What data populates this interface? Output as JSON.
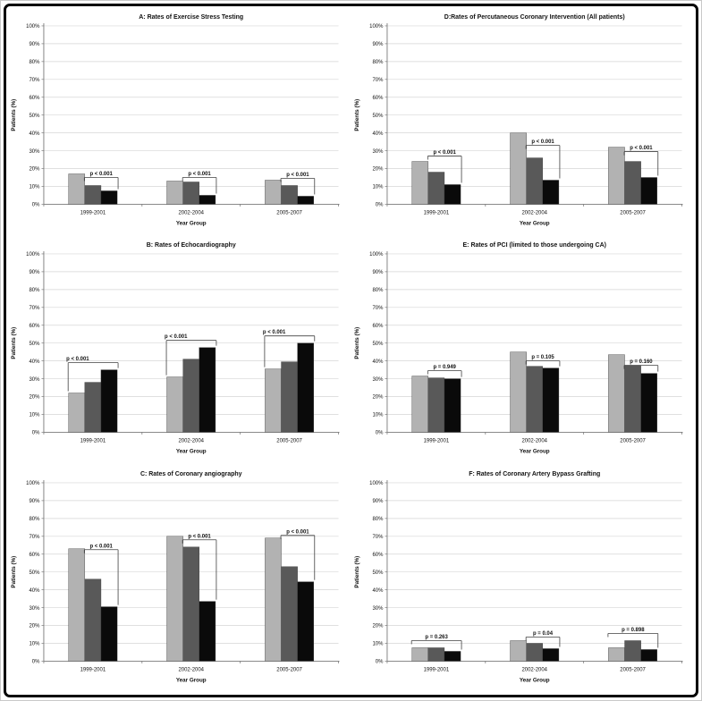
{
  "page": {
    "background": "#ffffff",
    "frame_border_color": "#000000",
    "grid_color": "#d6d6d6",
    "axis_color": "#7a7a7a",
    "bracket_color": "#404040"
  },
  "chart_defaults": {
    "xlabel": "Year Group",
    "ylabel": "Patients (%)",
    "categories": [
      "1999-2001",
      "2002-2004",
      "2005-2007"
    ],
    "ylim": [
      0,
      100
    ],
    "ytick_step": 10,
    "ytick_suffix": "%",
    "grid": true,
    "legend": "none",
    "series_colors": [
      "#b2b2b2",
      "#595959",
      "#0a0a0a"
    ]
  },
  "chart_data": [
    {
      "id": "A",
      "type": "bar",
      "title": "A: Rates of Exercise Stress Testing",
      "xlabel": "Year Group",
      "ylabel": "Patients (%)",
      "categories": [
        "1999-2001",
        "2002-2004",
        "2005-2007"
      ],
      "ylim": [
        0,
        100
      ],
      "series": [
        {
          "name": "light-gray-bar",
          "color": "#b2b2b2",
          "values": [
            17,
            13,
            13.5
          ]
        },
        {
          "name": "dark-gray-bar",
          "color": "#595959",
          "values": [
            10.5,
            12.5,
            10.5
          ]
        },
        {
          "name": "black-bar",
          "color": "#0a0a0a",
          "values": [
            7.5,
            5,
            4.5
          ]
        }
      ],
      "brackets": [
        {
          "label": "p < 0.001",
          "from": 1,
          "to": 2,
          "line_y": 15,
          "left_tick": "short",
          "label_align": "center"
        },
        {
          "label": "p < 0.001",
          "from": 1,
          "to": 2,
          "line_y": 15,
          "left_tick": "short",
          "label_align": "center"
        },
        {
          "label": "p < 0.001",
          "from": 1,
          "to": 2,
          "line_y": 14.5,
          "left_tick": "short",
          "label_align": "center"
        }
      ]
    },
    {
      "id": "D",
      "type": "bar",
      "title": "D:Rates of  Percutaneous Coronary Intervention (All patients)",
      "xlabel": "Year Group",
      "ylabel": "Patients (%)",
      "categories": [
        "1999-2001",
        "2002-2004",
        "2005-2007"
      ],
      "ylim": [
        0,
        100
      ],
      "series": [
        {
          "name": "light-gray-bar",
          "color": "#b2b2b2",
          "values": [
            24,
            40,
            32
          ]
        },
        {
          "name": "dark-gray-bar",
          "color": "#595959",
          "values": [
            18,
            26,
            24
          ]
        },
        {
          "name": "black-bar",
          "color": "#0a0a0a",
          "values": [
            11,
            13.5,
            15
          ]
        }
      ],
      "brackets": [
        {
          "label": "p < 0.001",
          "from": 1,
          "to": 2,
          "line_y": 27,
          "left_tick": "short",
          "label_align": "center"
        },
        {
          "label": "p < 0.001",
          "from": 1,
          "to": 2,
          "line_y": 33,
          "left_tick": "short",
          "label_align": "center"
        },
        {
          "label": "p < 0.001",
          "from": 1,
          "to": 2,
          "line_y": 29.5,
          "left_tick": "short",
          "label_align": "center"
        }
      ]
    },
    {
      "id": "B",
      "type": "bar",
      "title": "B: Rates of  Echocardiography",
      "xlabel": "Year Group",
      "ylabel": "Patients (%)",
      "categories": [
        "1999-2001",
        "2002-2004",
        "2005-2007"
      ],
      "ylim": [
        0,
        100
      ],
      "series": [
        {
          "name": "light-gray-bar",
          "color": "#b2b2b2",
          "values": [
            22,
            31,
            35.5
          ]
        },
        {
          "name": "dark-gray-bar",
          "color": "#595959",
          "values": [
            28,
            41,
            39.5
          ]
        },
        {
          "name": "black-bar",
          "color": "#0a0a0a",
          "values": [
            35,
            47.5,
            50
          ]
        }
      ],
      "brackets": [
        {
          "label": "p < 0.001",
          "from": 0,
          "to": 2,
          "line_y": 39,
          "left_tick": "bar",
          "label_align": "left"
        },
        {
          "label": "p < 0.001",
          "from": 0,
          "to": 2,
          "line_y": 51.5,
          "left_tick": "bar",
          "label_align": "left"
        },
        {
          "label": "p < 0.001",
          "from": 0,
          "to": 2,
          "line_y": 54,
          "left_tick": "bar",
          "label_align": "left"
        }
      ]
    },
    {
      "id": "E",
      "type": "bar",
      "title": "E: Rates of PCI (limited to those undergoing CA)",
      "xlabel": "Year Group",
      "ylabel": "Patients (%)",
      "categories": [
        "1999-2001",
        "2002-2004",
        "2005-2007"
      ],
      "ylim": [
        0,
        100
      ],
      "series": [
        {
          "name": "light-gray-bar",
          "color": "#b2b2b2",
          "values": [
            31.5,
            45,
            43.5
          ]
        },
        {
          "name": "dark-gray-bar",
          "color": "#595959",
          "values": [
            30.5,
            37,
            37.5
          ]
        },
        {
          "name": "black-bar",
          "color": "#0a0a0a",
          "values": [
            30,
            36,
            33
          ]
        }
      ],
      "brackets": [
        {
          "label": "p = 0.949",
          "from": 1,
          "to": 2,
          "line_y": 34.5,
          "left_tick": "short",
          "label_align": "center"
        },
        {
          "label": "p = 0.105",
          "from": 1,
          "to": 2,
          "line_y": 40,
          "left_tick": "short",
          "label_align": "center"
        },
        {
          "label": "p = 0.160",
          "from": 1,
          "to": 2,
          "line_y": 37.5,
          "left_tick": "short",
          "label_align": "center"
        }
      ]
    },
    {
      "id": "C",
      "type": "bar",
      "title": "C: Rates of Coronary angiography",
      "xlabel": "Year Group",
      "ylabel": "Patients (%)",
      "categories": [
        "1999-2001",
        "2002-2004",
        "2005-2007"
      ],
      "ylim": [
        0,
        100
      ],
      "series": [
        {
          "name": "light-gray-bar",
          "color": "#b2b2b2",
          "values": [
            63,
            70,
            69
          ]
        },
        {
          "name": "dark-gray-bar",
          "color": "#595959",
          "values": [
            46,
            64,
            53
          ]
        },
        {
          "name": "black-bar",
          "color": "#0a0a0a",
          "values": [
            30.5,
            33.5,
            44.5
          ]
        }
      ],
      "brackets": [
        {
          "label": "p < 0.001",
          "from": 1,
          "to": 2,
          "line_y": 62.5,
          "left_tick": "short",
          "label_align": "center"
        },
        {
          "label": "p < 0.001",
          "from": 1,
          "to": 2,
          "line_y": 68,
          "left_tick": "short",
          "label_align": "center"
        },
        {
          "label": "p < 0.001",
          "from": 1,
          "to": 2,
          "line_y": 70.5,
          "left_tick": "short",
          "label_align": "center"
        }
      ]
    },
    {
      "id": "F",
      "type": "bar",
      "title": "F: Rates of Coronary Artery Bypass Grafting",
      "xlabel": "Year Group",
      "ylabel": "Patients (%)",
      "categories": [
        "1999-2001",
        "2002-2004",
        "2005-2007"
      ],
      "ylim": [
        0,
        100
      ],
      "series": [
        {
          "name": "light-gray-bar",
          "color": "#b2b2b2",
          "values": [
            7.5,
            11.5,
            7.5
          ]
        },
        {
          "name": "dark-gray-bar",
          "color": "#595959",
          "values": [
            7.5,
            10,
            11.5
          ]
        },
        {
          "name": "black-bar",
          "color": "#0a0a0a",
          "values": [
            5.5,
            7,
            6.5
          ]
        }
      ],
      "brackets": [
        {
          "label": "p = 0.263",
          "from": 0,
          "to": 2,
          "line_y": 11.5,
          "left_tick": "short",
          "label_align": "center"
        },
        {
          "label": "p = 0.04",
          "from": 1,
          "to": 2,
          "line_y": 13.5,
          "left_tick": "short",
          "label_align": "center"
        },
        {
          "label": "p = 0.898",
          "from": 0,
          "to": 2,
          "line_y": 15.5,
          "left_tick": "short",
          "label_align": "center"
        }
      ]
    }
  ]
}
